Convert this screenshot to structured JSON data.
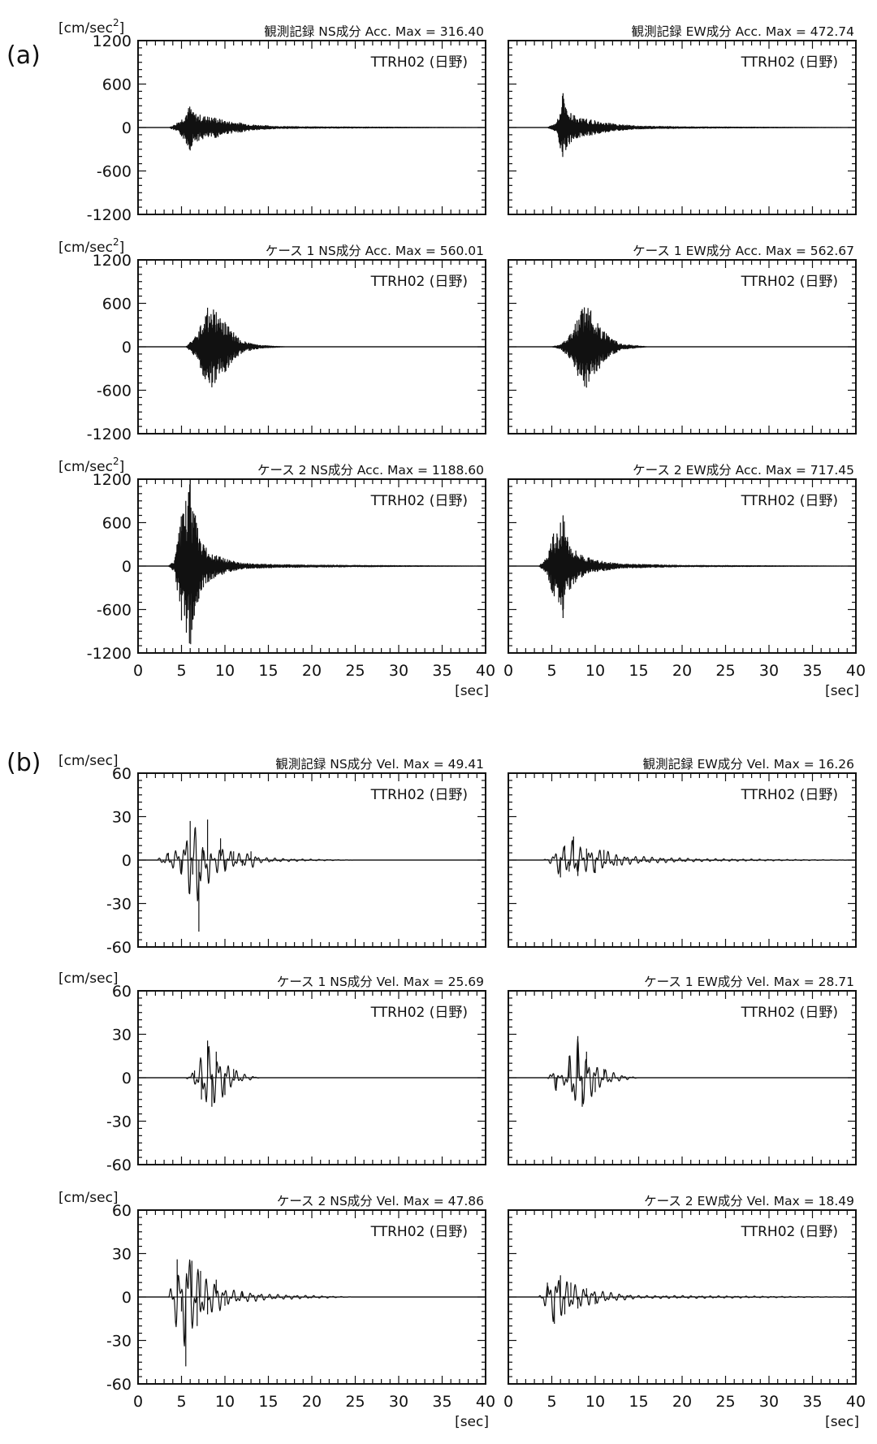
{
  "sections": [
    {
      "id": "a",
      "label": "(a)",
      "unit": "[cm/sec",
      "unit_sup": "2"
    },
    {
      "id": "b",
      "label": "(b)",
      "unit": "[cm/sec]",
      "unit_sup": ""
    }
  ],
  "x_axis_unit": "[sec]",
  "chart_data": [
    {
      "type": "line",
      "section": "a",
      "title": "観測記録  NS成分  Acc. Max = 316.40",
      "station": "TTRH02 (日野)",
      "xlim": [
        0,
        40
      ],
      "ylim": [
        -1200,
        1200
      ],
      "yticks": [
        "1200",
        "600",
        "0",
        "-600",
        "-1200"
      ],
      "series": [
        {
          "values": [
            [
              0,
              0
            ],
            [
              3.6,
              0
            ],
            [
              4.2,
              40
            ],
            [
              5,
              -120
            ],
            [
              6,
              -316.4
            ],
            [
              6.3,
              210
            ],
            [
              7,
              -180
            ],
            [
              8,
              150
            ],
            [
              9,
              -140
            ],
            [
              10,
              90
            ],
            [
              11.5,
              -70
            ],
            [
              13,
              40
            ],
            [
              16,
              -15
            ],
            [
              20,
              10
            ],
            [
              40,
              0
            ]
          ]
        }
      ]
    },
    {
      "type": "line",
      "section": "a",
      "title": "観測記録  EW成分  Acc. Max = 472.74",
      "station": "TTRH02 (日野)",
      "xlim": [
        0,
        40
      ],
      "ylim": [
        -1200,
        1200
      ],
      "yticks": [],
      "series": [
        {
          "values": [
            [
              0,
              0
            ],
            [
              4.5,
              0
            ],
            [
              5.5,
              -60
            ],
            [
              6.3,
              472.74
            ],
            [
              6.7,
              -270
            ],
            [
              7.2,
              200
            ],
            [
              8,
              -140
            ],
            [
              9,
              120
            ],
            [
              10.5,
              -80
            ],
            [
              12,
              50
            ],
            [
              15,
              -20
            ],
            [
              20,
              10
            ],
            [
              40,
              0
            ]
          ]
        }
      ]
    },
    {
      "type": "line",
      "section": "a",
      "title": "ケース 1  NS成分  Acc. Max = 560.01",
      "station": "TTRH02 (日野)",
      "xlim": [
        0,
        40
      ],
      "ylim": [
        -1200,
        1200
      ],
      "yticks": [
        "1200",
        "600",
        "0",
        "-600",
        "-1200"
      ],
      "series": [
        {
          "values": [
            [
              0,
              0
            ],
            [
              5.5,
              0
            ],
            [
              6.5,
              120
            ],
            [
              7.5,
              -400
            ],
            [
              8,
              540
            ],
            [
              8.5,
              -560.01
            ],
            [
              9,
              480
            ],
            [
              10,
              -350
            ],
            [
              11,
              200
            ],
            [
              12,
              -80
            ],
            [
              14,
              20
            ],
            [
              17,
              0
            ],
            [
              40,
              0
            ]
          ]
        }
      ]
    },
    {
      "type": "line",
      "section": "a",
      "title": "ケース 1  EW成分  Acc. Max = 562.67",
      "station": "TTRH02 (日野)",
      "xlim": [
        0,
        40
      ],
      "ylim": [
        -1200,
        1200
      ],
      "yticks": [],
      "series": [
        {
          "values": [
            [
              0,
              0
            ],
            [
              5,
              0
            ],
            [
              6,
              -30
            ],
            [
              7,
              150
            ],
            [
              8,
              -400
            ],
            [
              8.5,
              520
            ],
            [
              9,
              -562.67
            ],
            [
              9.5,
              500
            ],
            [
              10.5,
              -300
            ],
            [
              11.5,
              150
            ],
            [
              13,
              -40
            ],
            [
              16,
              0
            ],
            [
              40,
              0
            ]
          ]
        }
      ]
    },
    {
      "type": "line",
      "section": "a",
      "title": "ケース 2  NS成分  Acc. Max = 1188.60",
      "station": "TTRH02 (日野)",
      "xlim": [
        0,
        40
      ],
      "ylim": [
        -1200,
        1200
      ],
      "yticks": [
        "1200",
        "600",
        "0",
        "-600",
        "-1200"
      ],
      "series": [
        {
          "values": [
            [
              0,
              0
            ],
            [
              3.5,
              0
            ],
            [
              4.2,
              80
            ],
            [
              5,
              -750
            ],
            [
              5.5,
              900
            ],
            [
              6,
              1188.6
            ],
            [
              6.2,
              -880
            ],
            [
              6.6,
              700
            ],
            [
              7,
              -450
            ],
            [
              7.5,
              300
            ],
            [
              8.5,
              -180
            ],
            [
              10,
              100
            ],
            [
              12,
              -40
            ],
            [
              16,
              20
            ],
            [
              25,
              -10
            ],
            [
              40,
              0
            ]
          ]
        }
      ]
    },
    {
      "type": "line",
      "section": "a",
      "title": "ケース 2  EW成分  Acc. Max = 717.45",
      "station": "TTRH02 (日野)",
      "xlim": [
        0,
        40
      ],
      "ylim": [
        -1200,
        1200
      ],
      "yticks": [],
      "series": [
        {
          "values": [
            [
              0,
              0
            ],
            [
              3.5,
              0
            ],
            [
              4.5,
              -120
            ],
            [
              5.2,
              450
            ],
            [
              5.8,
              -500
            ],
            [
              6,
              600
            ],
            [
              6.3,
              -717.45
            ],
            [
              6.8,
              400
            ],
            [
              7.5,
              -250
            ],
            [
              8.5,
              150
            ],
            [
              10,
              -80
            ],
            [
              13,
              30
            ],
            [
              20,
              -10
            ],
            [
              40,
              0
            ]
          ]
        }
      ]
    },
    {
      "type": "line",
      "section": "b",
      "title": "観測記録  NS成分  Vel. Max = 49.41",
      "station": "TTRH02 (日野)",
      "xlim": [
        0,
        40
      ],
      "ylim": [
        -60,
        60
      ],
      "yticks": [
        "60",
        "30",
        "0",
        "-30",
        "-60"
      ],
      "series": [
        {
          "values": [
            [
              0,
              0
            ],
            [
              2,
              0
            ],
            [
              3.5,
              5
            ],
            [
              5,
              -10
            ],
            [
              6,
              27
            ],
            [
              6.3,
              -10
            ],
            [
              7,
              -49.41
            ],
            [
              7.5,
              5
            ],
            [
              8,
              28
            ],
            [
              8.5,
              0
            ],
            [
              9.5,
              15
            ],
            [
              10,
              -8
            ],
            [
              11,
              6
            ],
            [
              12,
              -4
            ],
            [
              13,
              6
            ],
            [
              14,
              -2
            ],
            [
              17,
              1
            ],
            [
              25,
              0
            ],
            [
              40,
              0
            ]
          ]
        }
      ]
    },
    {
      "type": "line",
      "section": "b",
      "title": "観測記録  EW成分  Vel. Max = 16.26",
      "station": "TTRH02 (日野)",
      "xlim": [
        0,
        40
      ],
      "ylim": [
        -60,
        60
      ],
      "yticks": [],
      "series": [
        {
          "values": [
            [
              0,
              0
            ],
            [
              4,
              0
            ],
            [
              5,
              3
            ],
            [
              6,
              -12
            ],
            [
              6.5,
              10
            ],
            [
              7,
              -8
            ],
            [
              7.5,
              16.26
            ],
            [
              8,
              -11
            ],
            [
              9,
              8
            ],
            [
              10,
              -9
            ],
            [
              11,
              7
            ],
            [
              12.5,
              -4
            ],
            [
              14,
              3
            ],
            [
              17,
              -2
            ],
            [
              22,
              1
            ],
            [
              40,
              0
            ]
          ]
        }
      ]
    },
    {
      "type": "line",
      "section": "b",
      "title": "ケース 1  NS成分  Vel. Max = 25.69",
      "station": "TTRH02 (日野)",
      "xlim": [
        0,
        40
      ],
      "ylim": [
        -60,
        60
      ],
      "yticks": [
        "60",
        "30",
        "0",
        "-30",
        "-60"
      ],
      "series": [
        {
          "values": [
            [
              0,
              0
            ],
            [
              5.5,
              0
            ],
            [
              6.5,
              5
            ],
            [
              7.3,
              -15
            ],
            [
              8,
              25.69
            ],
            [
              8.5,
              -20
            ],
            [
              9,
              18
            ],
            [
              10,
              -12
            ],
            [
              11,
              6
            ],
            [
              12,
              -3
            ],
            [
              14,
              0
            ],
            [
              40,
              0
            ]
          ]
        }
      ]
    },
    {
      "type": "line",
      "section": "b",
      "title": "ケース 1  EW成分  Vel. Max = 28.71",
      "station": "TTRH02 (日野)",
      "xlim": [
        0,
        40
      ],
      "ylim": [
        -60,
        60
      ],
      "yticks": [],
      "series": [
        {
          "values": [
            [
              0,
              0
            ],
            [
              4.5,
              0
            ],
            [
              5.5,
              -9
            ],
            [
              6,
              0
            ],
            [
              7,
              15
            ],
            [
              8,
              28.71
            ],
            [
              8.5,
              -20
            ],
            [
              9,
              18
            ],
            [
              10,
              -10
            ],
            [
              11,
              6
            ],
            [
              13,
              -2
            ],
            [
              15,
              0
            ],
            [
              40,
              0
            ]
          ]
        }
      ]
    },
    {
      "type": "line",
      "section": "b",
      "title": "ケース 2  NS成分  Vel. Max = 47.86",
      "station": "TTRH02 (日野)",
      "xlim": [
        0,
        40
      ],
      "ylim": [
        -60,
        60
      ],
      "yticks": [
        "60",
        "30",
        "0",
        "-30",
        "-60"
      ],
      "series": [
        {
          "values": [
            [
              0,
              0
            ],
            [
              3.5,
              0
            ],
            [
              4.5,
              26
            ],
            [
              5,
              -10
            ],
            [
              5.5,
              -47.86
            ],
            [
              6.2,
              25
            ],
            [
              6.8,
              -20
            ],
            [
              7.2,
              18
            ],
            [
              8,
              -12
            ],
            [
              9,
              12
            ],
            [
              10,
              -6
            ],
            [
              12,
              4
            ],
            [
              15,
              -2
            ],
            [
              25,
              0
            ],
            [
              40,
              0
            ]
          ]
        }
      ]
    },
    {
      "type": "line",
      "section": "b",
      "title": "ケース 2  EW成分  Vel. Max = 18.49",
      "station": "TTRH02 (日野)",
      "xlim": [
        0,
        40
      ],
      "ylim": [
        -60,
        60
      ],
      "yticks": [],
      "series": [
        {
          "values": [
            [
              0,
              0
            ],
            [
              3.5,
              0
            ],
            [
              4.5,
              10
            ],
            [
              5.3,
              -18.49
            ],
            [
              6,
              15
            ],
            [
              6.5,
              -12
            ],
            [
              7.2,
              10
            ],
            [
              8,
              -8
            ],
            [
              9,
              6
            ],
            [
              10,
              -5
            ],
            [
              12,
              3
            ],
            [
              15,
              -1
            ],
            [
              20,
              1
            ],
            [
              40,
              0
            ]
          ]
        }
      ]
    }
  ],
  "xticks": [
    "0",
    "5",
    "10",
    "15",
    "20",
    "25",
    "30",
    "35",
    "40"
  ]
}
